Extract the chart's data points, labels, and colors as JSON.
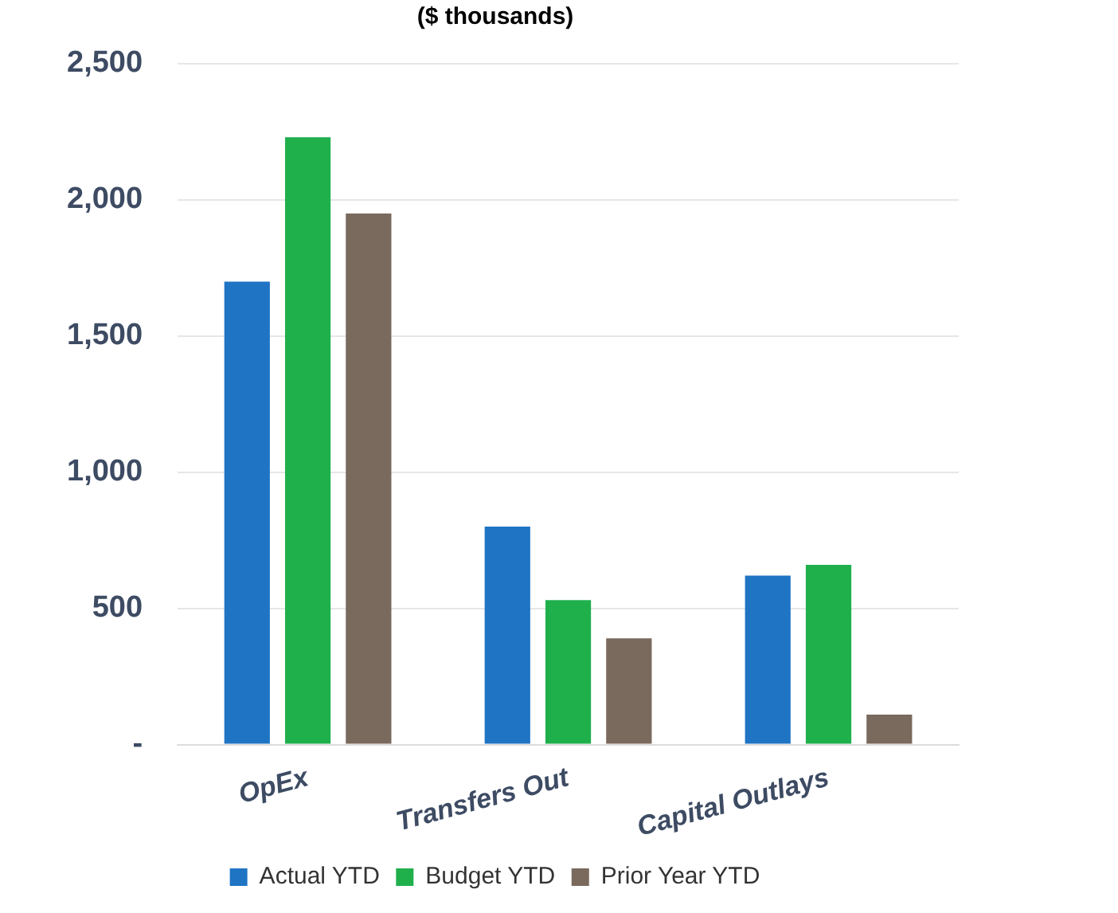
{
  "chart_data": {
    "type": "bar",
    "title": "($ thousands)",
    "categories": [
      "OpEx",
      "Transfers Out",
      "Capital Outlays"
    ],
    "series": [
      {
        "name": "Actual YTD",
        "color": "#1f74c4",
        "values": [
          1700,
          800,
          620
        ]
      },
      {
        "name": "Budget YTD",
        "color": "#1fb04c",
        "values": [
          2230,
          530,
          660
        ]
      },
      {
        "name": "Prior Year YTD",
        "color": "#7a695d",
        "values": [
          1950,
          390,
          110
        ]
      }
    ],
    "ylim": [
      0,
      2500
    ],
    "yticks": [
      {
        "value": 0,
        "label": "-"
      },
      {
        "value": 500,
        "label": "500"
      },
      {
        "value": 1000,
        "label": "1,000"
      },
      {
        "value": 1500,
        "label": "1,500"
      },
      {
        "value": 2000,
        "label": "2,000"
      },
      {
        "value": 2500,
        "label": "2,500"
      }
    ],
    "grid": "y",
    "legend": "bottom"
  }
}
